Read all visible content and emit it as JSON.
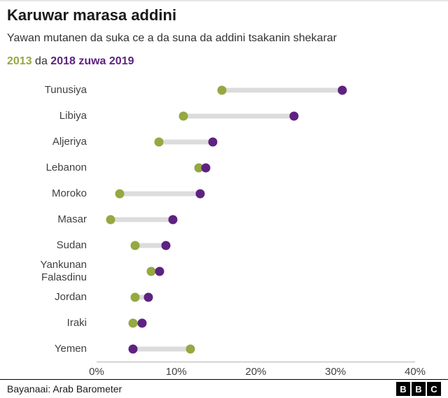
{
  "header": {
    "title": "Karuwar marasa addini",
    "subtitle": "Yawan mutanen da suka ce a da suna da addini tsakanin shekarar",
    "legend": {
      "year1": "2013",
      "separator": "da",
      "year2": "2018 zuwa 2019"
    }
  },
  "chart_data": {
    "type": "dumbbell",
    "categories": [
      "Tunusiya",
      "Libiya",
      "Aljeriya",
      "Lebanon",
      "Moroko",
      "Masar",
      "Sudan",
      "Yankunan Falasdinu",
      "Jordan",
      "Iraki",
      "Yemen"
    ],
    "series": [
      {
        "name": "2013",
        "color": "#94a843",
        "values": [
          15.7,
          10.9,
          7.8,
          12.8,
          2.9,
          1.8,
          4.8,
          6.9,
          4.8,
          4.6,
          11.8
        ]
      },
      {
        "name": "2018 zuwa 2019",
        "color": "#5e2281",
        "values": [
          30.9,
          24.8,
          14.6,
          13.7,
          13.0,
          9.6,
          8.7,
          7.9,
          6.5,
          5.7,
          4.6
        ]
      }
    ],
    "xlim": [
      0,
      40
    ],
    "xticks": [
      {
        "value": 0,
        "label": "0%"
      },
      {
        "value": 10,
        "label": "10%"
      },
      {
        "value": 20,
        "label": "20%"
      },
      {
        "value": 30,
        "label": "30%"
      },
      {
        "value": 40,
        "label": "40%"
      }
    ],
    "grid": false,
    "connector_color": "#dcdcdc",
    "legend_position": "top"
  },
  "footer": {
    "source": "Bayanaai: Arab Barometer",
    "logo_letters": [
      "B",
      "B",
      "C"
    ]
  }
}
